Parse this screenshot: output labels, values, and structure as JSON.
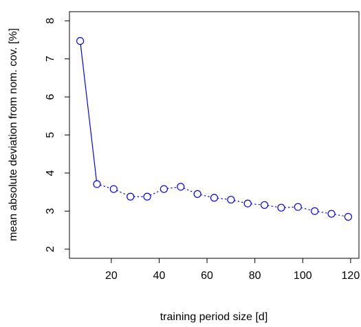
{
  "chart_data": {
    "type": "line",
    "x_label": "training period size [d]",
    "y_label": "mean absolute deviation from nom. cov. [%]",
    "x": [
      7,
      14,
      21,
      28,
      35,
      42,
      49,
      56,
      63,
      70,
      77,
      84,
      91,
      98,
      105,
      112,
      119
    ],
    "series": [
      {
        "color": "#0000ff",
        "values": [
          7.47,
          3.71,
          3.58,
          3.38,
          3.38,
          3.58,
          3.64,
          3.45,
          3.35,
          3.3,
          3.2,
          3.16,
          3.09,
          3.11,
          3.0,
          2.93,
          2.85
        ],
        "marker": "open-circle",
        "linestyle": "dotted",
        "first_segment_linestyle": "solid"
      }
    ],
    "xlim": [
      2.52,
      123.48
    ],
    "ylim": [
      1.76,
      8.24
    ],
    "xticks": [
      20,
      40,
      60,
      80,
      100,
      120
    ],
    "yticks": [
      2,
      3,
      4,
      5,
      6,
      7,
      8
    ],
    "grid": false
  }
}
